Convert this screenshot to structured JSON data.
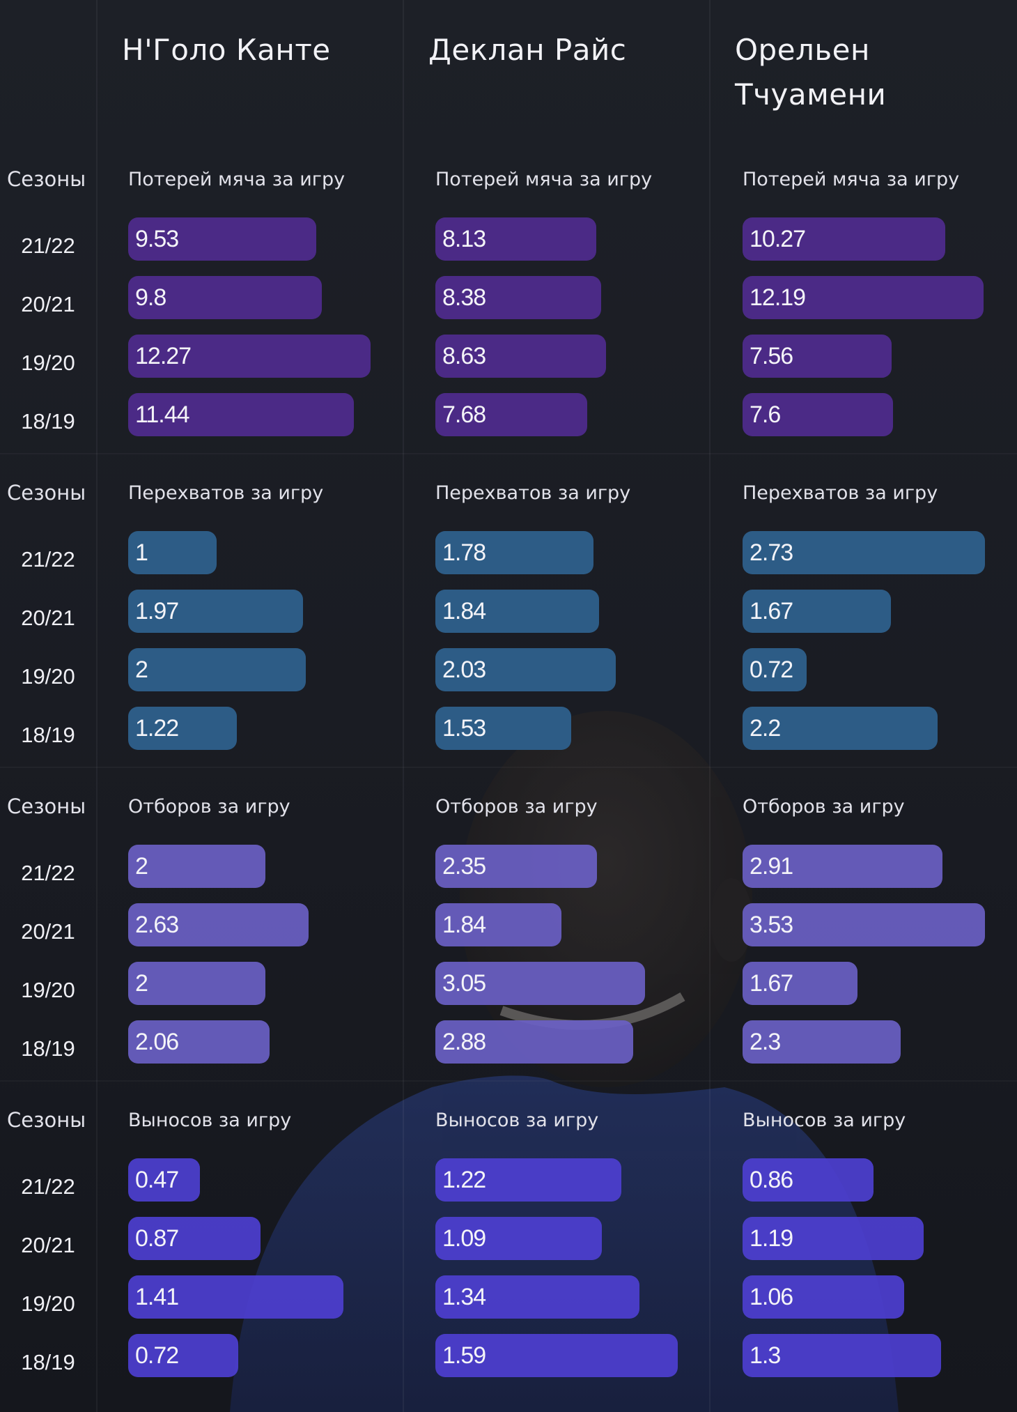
{
  "players": [
    "Н'Голо Канте",
    "Деклан Райс",
    "Орельен Тчуамени"
  ],
  "seasons_header": "Сезоны",
  "colors": {
    "background": "#1c1f26",
    "turnovers": "#4f2b8e",
    "interceptions": "#2f628f",
    "tackles": "#6a5fc4",
    "clearances": "#4d3fd0"
  },
  "chart_data": [
    {
      "type": "bar",
      "metric": "Потерей мяча за игру",
      "color_key": "turnovers",
      "categories": [
        "21/22",
        "20/21",
        "19/20",
        "18/19"
      ],
      "series": [
        {
          "name": "Н'Голо Канте",
          "values": [
            9.53,
            9.8,
            12.27,
            11.44
          ]
        },
        {
          "name": "Деклан Райс",
          "values": [
            8.13,
            8.38,
            8.63,
            7.68
          ]
        },
        {
          "name": "Орельен Тчуамени",
          "values": [
            10.27,
            12.19,
            7.56,
            7.6
          ]
        }
      ],
      "value_labels": [
        [
          "9.53",
          "9.8",
          "12.27",
          "11.44"
        ],
        [
          "8.13",
          "8.38",
          "8.63",
          "7.68"
        ],
        [
          "10.27",
          "12.19",
          "7.56",
          "7.6"
        ]
      ]
    },
    {
      "type": "bar",
      "metric": "Перехватов за игру",
      "color_key": "interceptions",
      "categories": [
        "21/22",
        "20/21",
        "19/20",
        "18/19"
      ],
      "series": [
        {
          "name": "Н'Голо Канте",
          "values": [
            1,
            1.97,
            2,
            1.22
          ]
        },
        {
          "name": "Деклан Райс",
          "values": [
            1.78,
            1.84,
            2.03,
            1.53
          ]
        },
        {
          "name": "Орельен Тчуамени",
          "values": [
            2.73,
            1.67,
            0.72,
            2.2
          ]
        }
      ],
      "value_labels": [
        [
          "1",
          "1.97",
          "2",
          "1.22"
        ],
        [
          "1.78",
          "1.84",
          "2.03",
          "1.53"
        ],
        [
          "2.73",
          "1.67",
          "0.72",
          "2.2"
        ]
      ]
    },
    {
      "type": "bar",
      "metric": "Отборов за игру",
      "color_key": "tackles",
      "categories": [
        "21/22",
        "20/21",
        "19/20",
        "18/19"
      ],
      "series": [
        {
          "name": "Н'Голо Канте",
          "values": [
            2,
            2.63,
            2,
            2.06
          ]
        },
        {
          "name": "Деклан Райс",
          "values": [
            2.35,
            1.84,
            3.05,
            2.88
          ]
        },
        {
          "name": "Орельен Тчуамени",
          "values": [
            2.91,
            3.53,
            1.67,
            2.3
          ]
        }
      ],
      "value_labels": [
        [
          "2",
          "2.63",
          "2",
          "2.06"
        ],
        [
          "2.35",
          "1.84",
          "3.05",
          "2.88"
        ],
        [
          "2.91",
          "3.53",
          "1.67",
          "2.3"
        ]
      ]
    },
    {
      "type": "bar",
      "metric": "Выносов за игру",
      "color_key": "clearances",
      "categories": [
        "21/22",
        "20/21",
        "19/20",
        "18/19"
      ],
      "series": [
        {
          "name": "Н'Голо Канте",
          "values": [
            0.47,
            0.87,
            1.41,
            0.72
          ]
        },
        {
          "name": "Деклан Райс",
          "values": [
            1.22,
            1.09,
            1.34,
            1.59
          ]
        },
        {
          "name": "Орельен Тчуамени",
          "values": [
            0.86,
            1.19,
            1.06,
            1.3
          ]
        }
      ],
      "value_labels": [
        [
          "0.47",
          "0.87",
          "1.41",
          "0.72"
        ],
        [
          "1.22",
          "1.09",
          "1.34",
          "1.59"
        ],
        [
          "0.86",
          "1.19",
          "1.06",
          "1.3"
        ]
      ]
    }
  ]
}
